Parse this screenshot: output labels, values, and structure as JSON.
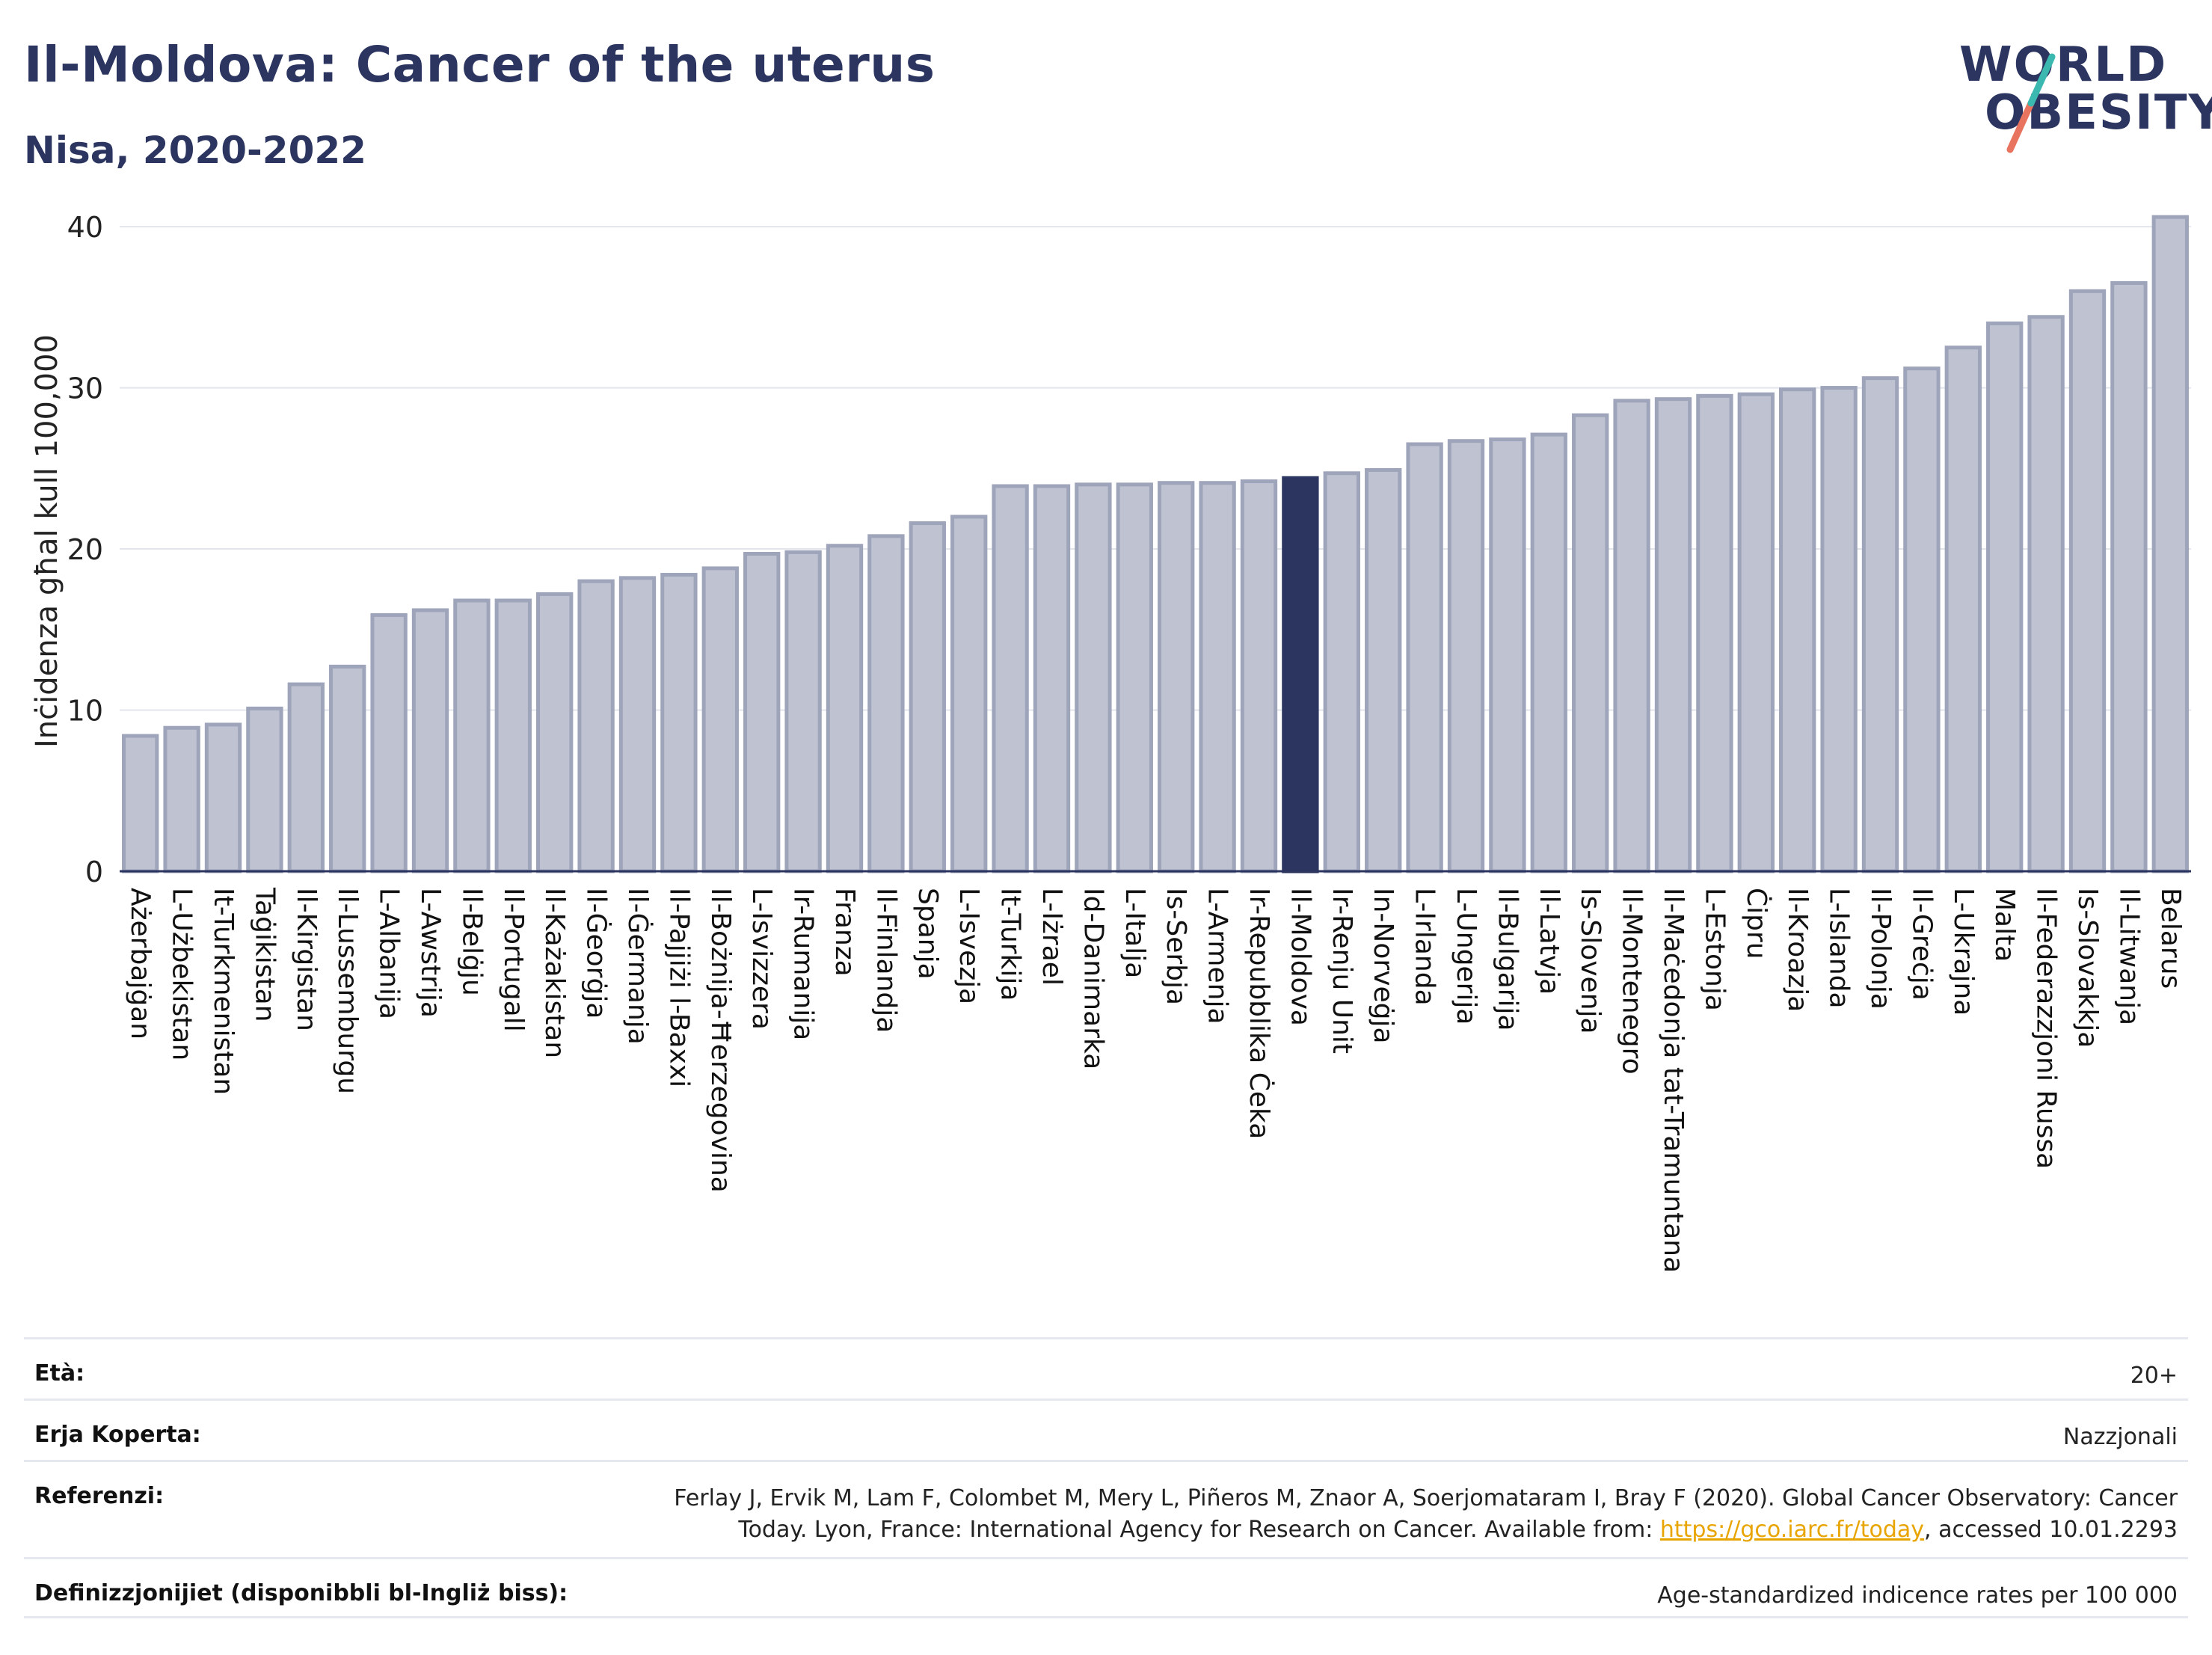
{
  "header": {
    "title": "Il-Moldova: Cancer of the uterus",
    "subtitle": "Nisa, 2020-2022",
    "logo_line1": "WORLD",
    "logo_line2": "OBESITY"
  },
  "chart_data": {
    "type": "bar",
    "ylabel": "Inċidenza għal kull 100,000",
    "ylim": [
      0,
      42
    ],
    "yticks": [
      0,
      10,
      20,
      30,
      40
    ],
    "grid": true,
    "highlight": "Il-Moldova",
    "bar_color": "#bfc3d1",
    "bar_edge_color": "#9ea4ba",
    "highlight_color": "#2b3560",
    "categories": [
      "Ażerbajġan",
      "L-Użbekistan",
      "It-Turkmenistan",
      "Taġikistan",
      "Il-Kirgistan",
      "Il-Lussemburgu",
      "L-Albanija",
      "L-Awstrija",
      "Il-Belġju",
      "Il-Portugall",
      "Il-Każakistan",
      "Il-Ġeorġja",
      "Il-Ġermanja",
      "Il-Pajjiżi l-Baxxi",
      "Il-Bożnija-Ħerzegovina",
      "L-Isvizzera",
      "Ir-Rumanija",
      "Franza",
      "Il-Finlandja",
      "Spanja",
      "L-Isvezja",
      "It-Turkija",
      "L-Iżrael",
      "Id-Danimarka",
      "L-Italja",
      "Is-Serbja",
      "L-Armenja",
      "Ir-Repubblika Ċeka",
      "Il-Moldova",
      "Ir-Renju Unit",
      "In-Norveġja",
      "L-Irlanda",
      "L-Ungerija",
      "Il-Bulgarija",
      "Il-Latvja",
      "Is-Slovenja",
      "Il-Montenegro",
      "Il-Maċedonja tat-Tramuntana",
      "L-Estonja",
      "Ċipru",
      "Il-Kroazja",
      "L-Islanda",
      "Il-Polonja",
      "Il-Greċja",
      "L-Ukrajna",
      "Malta",
      "Il-Federazzjoni Russa",
      "Is-Slovakkja",
      "Il-Litwanja",
      "Belarus"
    ],
    "values": [
      8.4,
      8.9,
      9.1,
      10.1,
      11.6,
      12.7,
      15.9,
      16.2,
      16.8,
      16.8,
      17.2,
      18.0,
      18.2,
      18.4,
      18.8,
      19.7,
      19.8,
      20.2,
      20.8,
      21.6,
      22.0,
      23.9,
      23.9,
      24.0,
      24.0,
      24.1,
      24.1,
      24.2,
      24.4,
      24.7,
      24.9,
      26.5,
      26.7,
      26.8,
      27.1,
      28.3,
      29.2,
      29.3,
      29.5,
      29.6,
      29.9,
      30.0,
      30.6,
      31.2,
      32.5,
      34.0,
      34.4,
      36.0,
      36.5,
      40.6
    ]
  },
  "meta": {
    "age_label": "Età:",
    "age_value": "20+",
    "coverage_label": "Erja Koperta:",
    "coverage_value": "Nazzjonali",
    "ref_label": "Referenzi:",
    "ref_line1": "Ferlay J, Ervik M, Lam F, Colombet M, Mery L, Piñeros M, Znaor A, Soerjomataram I, Bray F (2020). Global Cancer Observatory: Cancer",
    "ref_line2_pre": "Today. Lyon, France: International Agency for Research on Cancer. Available from: ",
    "ref_link": "https://gco.iarc.fr/today",
    "ref_line2_post": ", accessed 10.01.2293",
    "def_label": "Definizzjonijiet (disponibbli bl-Ingliż biss):",
    "def_value": "Age-standardized indicence rates per 100 000"
  }
}
